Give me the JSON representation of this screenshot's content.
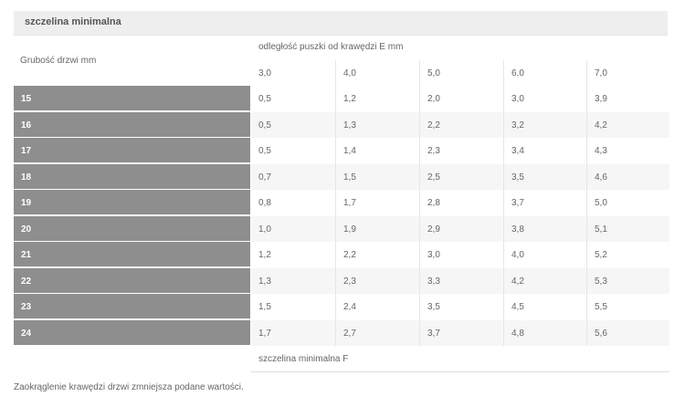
{
  "title": "szczelina minimalna",
  "row_header_label": "Grubość drzwi mm",
  "column_group_label": "odległość puszki od krawędzi E mm",
  "columns": [
    "3,0",
    "4,0",
    "5,0",
    "6,0",
    "7,0"
  ],
  "rows": [
    {
      "label": "15",
      "values": [
        "0,5",
        "1,2",
        "2,0",
        "3,0",
        "3,9"
      ]
    },
    {
      "label": "16",
      "values": [
        "0,5",
        "1,3",
        "2,2",
        "3,2",
        "4,2"
      ]
    },
    {
      "label": "17",
      "values": [
        "0,5",
        "1,4",
        "2,3",
        "3,4",
        "4,3"
      ]
    },
    {
      "label": "18",
      "values": [
        "0,7",
        "1,5",
        "2,5",
        "3,5",
        "4,6"
      ]
    },
    {
      "label": "19",
      "values": [
        "0,8",
        "1,7",
        "2,8",
        "3,7",
        "5,0"
      ]
    },
    {
      "label": "20",
      "values": [
        "1,0",
        "1,9",
        "2,9",
        "3,8",
        "5,1"
      ]
    },
    {
      "label": "21",
      "values": [
        "1,2",
        "2,2",
        "3,0",
        "4,0",
        "5,2"
      ]
    },
    {
      "label": "22",
      "values": [
        "1,3",
        "2,3",
        "3,3",
        "4,2",
        "5,3"
      ]
    },
    {
      "label": "23",
      "values": [
        "1,5",
        "2,4",
        "3,5",
        "4,5",
        "5,5"
      ]
    },
    {
      "label": "24",
      "values": [
        "1,7",
        "2,7",
        "3,7",
        "4,8",
        "5,6"
      ]
    }
  ],
  "footer_label": "szczelina minimalna F",
  "note": "Zaokrąglenie krawędzi drzwi zmniejsza podane wartości."
}
